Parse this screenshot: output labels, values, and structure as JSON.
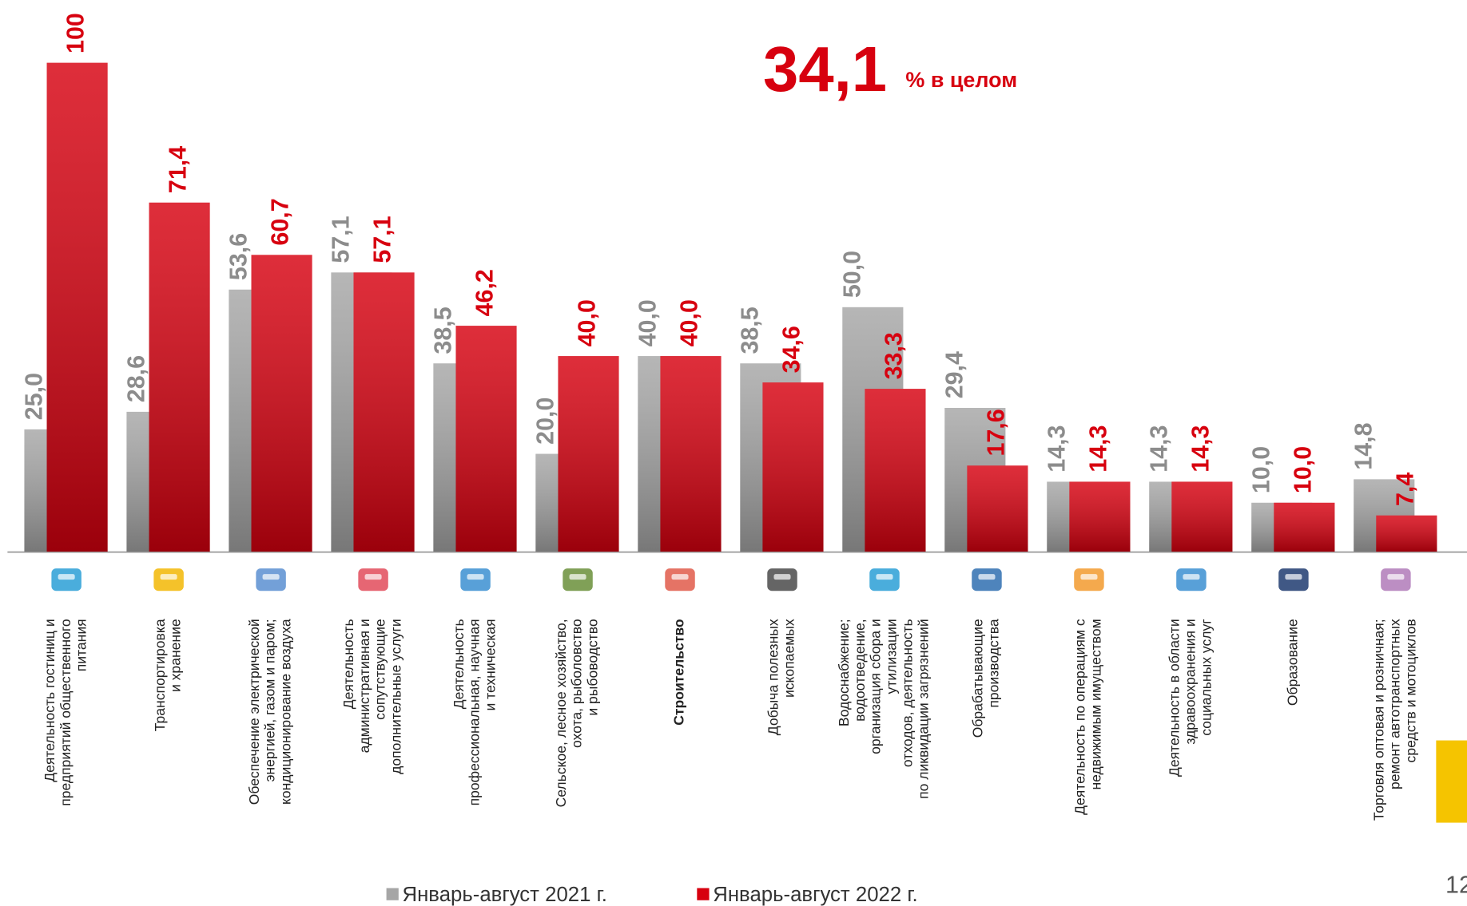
{
  "chart_data": {
    "type": "bar",
    "headline": "34,1",
    "headline_label": "% в целом",
    "categories": [
      [
        "Деятельность гостиниц и",
        "предприятий общественного",
        "питания"
      ],
      [
        "Транспортировка",
        "и хранение"
      ],
      [
        "Обеспечение электрической",
        "энергией, газом и паром;",
        "кондиционирование воздуха"
      ],
      [
        "Деятельность",
        "административная и",
        "сопутствующие",
        "дополнительные услуги"
      ],
      [
        "Деятельность",
        "профессиональная, научная",
        "и техническая"
      ],
      [
        "Сельское, лесное хозяйство,",
        "охота, рыболовство",
        "и рыбоводство"
      ],
      [
        "Строительство"
      ],
      [
        "Добыча полезных",
        "ископаемых"
      ],
      [
        "Водоснабжение;",
        "водоотведение,",
        "организация сбора и",
        "утилизации",
        "отходов, деятельность",
        "по ликвидации загрязнений"
      ],
      [
        "Обрабатывающие",
        "производства"
      ],
      [
        "Деятельность по операциям с",
        "недвижимым имуществом"
      ],
      [
        "Деятельность в области",
        "здравоохранения и",
        "социальных услуг"
      ],
      [
        "Образование"
      ],
      [
        "Торговля оптовая и розничная;",
        "ремонт автотранспортных",
        "средств и мотоциклов"
      ]
    ],
    "series": [
      {
        "name": "Январь-август 2021 г.",
        "color": "#a6a6a6",
        "values": [
          25.0,
          28.6,
          53.6,
          57.1,
          38.5,
          20.0,
          40.0,
          38.5,
          50.0,
          29.4,
          14.3,
          14.3,
          10.0,
          14.8
        ],
        "value_labels": [
          "25,0",
          "28,6",
          "53,6",
          "57,1",
          "38,5",
          "20,0",
          "40,0",
          "38,5",
          "50,0",
          "29,4",
          "14,3",
          "14,3",
          "10,0",
          "14,8"
        ]
      },
      {
        "name": "Январь-август 2022 г.",
        "color": "#d7000f",
        "values": [
          100,
          71.4,
          60.7,
          57.1,
          46.2,
          40.0,
          40.0,
          34.6,
          33.3,
          17.6,
          14.3,
          14.3,
          10.0,
          7.4
        ],
        "value_labels": [
          "100",
          "71,4",
          "60,7",
          "57,1",
          "46,2",
          "40,0",
          "40,0",
          "34,6",
          "33,3",
          "17,6",
          "14,3",
          "14,3",
          "10,0",
          "7,4"
        ]
      }
    ],
    "ylim": [
      0,
      100
    ],
    "page_number": "12"
  }
}
